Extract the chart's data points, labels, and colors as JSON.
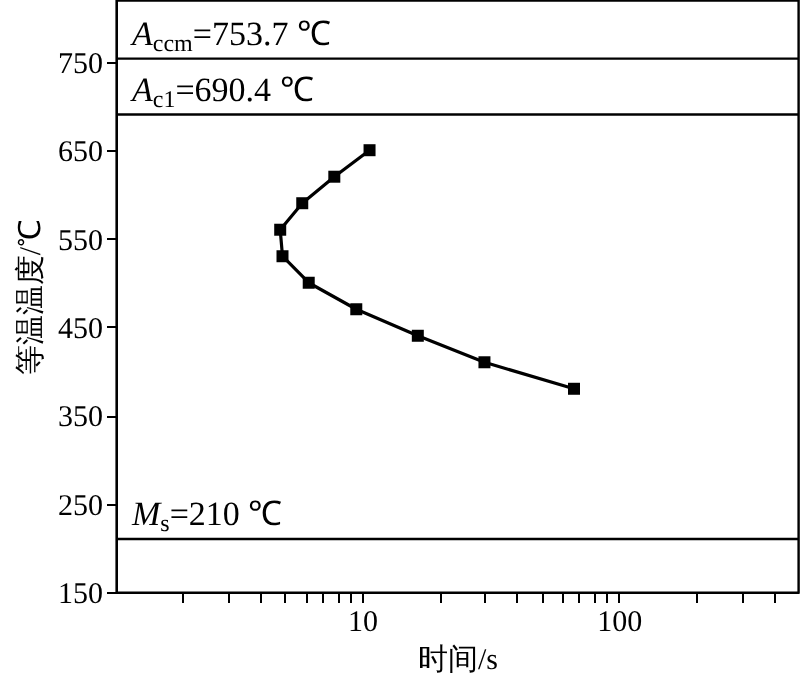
{
  "chart_data": {
    "type": "line",
    "xlabel": "时间/s",
    "ylabel": "等温温度/℃",
    "x": [
      10.7,
      7.8,
      5.85,
      4.8,
      4.9,
      6.2,
      9.5,
      16.5,
      30,
      67
    ],
    "series": [
      {
        "color": "#000000",
        "values": [
          650,
          620,
          590,
          560,
          530,
          500,
          470,
          440,
          410,
          380
        ]
      }
    ],
    "log": "x",
    "xlim": [
      1.1,
      500
    ],
    "ylim": [
      150,
      820
    ],
    "xticks": [
      {
        "value": 2,
        "label": null
      },
      {
        "value": 3,
        "label": null
      },
      {
        "value": 4,
        "label": null
      },
      {
        "value": 5,
        "label": null
      },
      {
        "value": 6,
        "label": null
      },
      {
        "value": 7,
        "label": null
      },
      {
        "value": 8,
        "label": null
      },
      {
        "value": 9,
        "label": null
      },
      10,
      {
        "value": 20,
        "label": null
      },
      {
        "value": 30,
        "label": null
      },
      {
        "value": 40,
        "label": null
      },
      {
        "value": 50,
        "label": null
      },
      {
        "value": 60,
        "label": null
      },
      {
        "value": 70,
        "label": null
      },
      {
        "value": 80,
        "label": null
      },
      {
        "value": 90,
        "label": null
      },
      100,
      {
        "value": 200,
        "label": null
      },
      {
        "value": 300,
        "label": null
      },
      {
        "value": 400,
        "label": null
      }
    ],
    "yticks": [
      150,
      250,
      350,
      450,
      550,
      650,
      750
    ],
    "ref_lines": [
      {
        "axis": "y",
        "value": 753.7,
        "label": "A$_{ccm}$=753.7 ℃",
        "color": "#000000"
      },
      {
        "axis": "y",
        "value": 690.4,
        "label": "A$_{c1}$=690.4 ℃",
        "color": "#000000"
      },
      {
        "axis": "y",
        "value": 210,
        "label": "M$_{s}$=210 ℃",
        "color": "#000000"
      }
    ],
    "grid": false,
    "marker": "square",
    "line_style": "solid"
  }
}
